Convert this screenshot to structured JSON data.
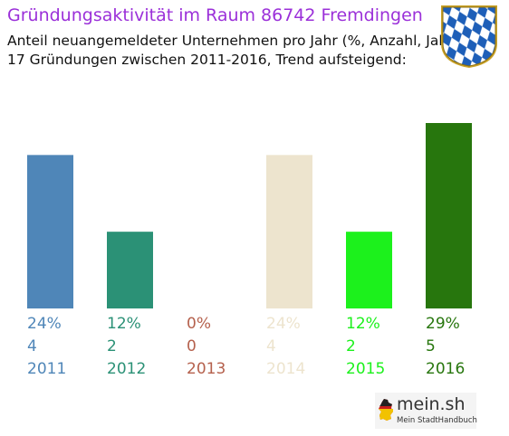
{
  "header": {
    "title": "Gründungsaktivität im Raum 86742 Fremdingen",
    "subtitle_line1": "Anteil neuangemeldeter Unternehmen pro Jahr (%, Anzahl, Jahr)",
    "subtitle_line2": "17 Gründungen zwischen 2011-2016, Trend aufsteigend:"
  },
  "crest": {
    "icon": "bavaria-coat-of-arms-icon"
  },
  "chart_data": {
    "type": "bar",
    "categories": [
      "2011",
      "2012",
      "2013",
      "2014",
      "2015",
      "2016"
    ],
    "values": [
      24,
      12,
      0,
      24,
      12,
      29
    ],
    "counts": [
      4,
      2,
      0,
      4,
      2,
      5
    ],
    "percent_labels": [
      "24%",
      "12%",
      "0%",
      "24%",
      "12%",
      "29%"
    ],
    "count_labels": [
      "4",
      "2",
      "0",
      "4",
      "2",
      "5"
    ],
    "colors": [
      "#4f86b8",
      "#2b9176",
      "#b5614d",
      "#ede4ce",
      "#1cf11c",
      "#27760d"
    ],
    "ylim": [
      0,
      29
    ],
    "grid": false
  },
  "logo": {
    "name": "mein.sh",
    "tagline": "Mein StadtHandbuch",
    "icon": "germany-map-icon"
  }
}
